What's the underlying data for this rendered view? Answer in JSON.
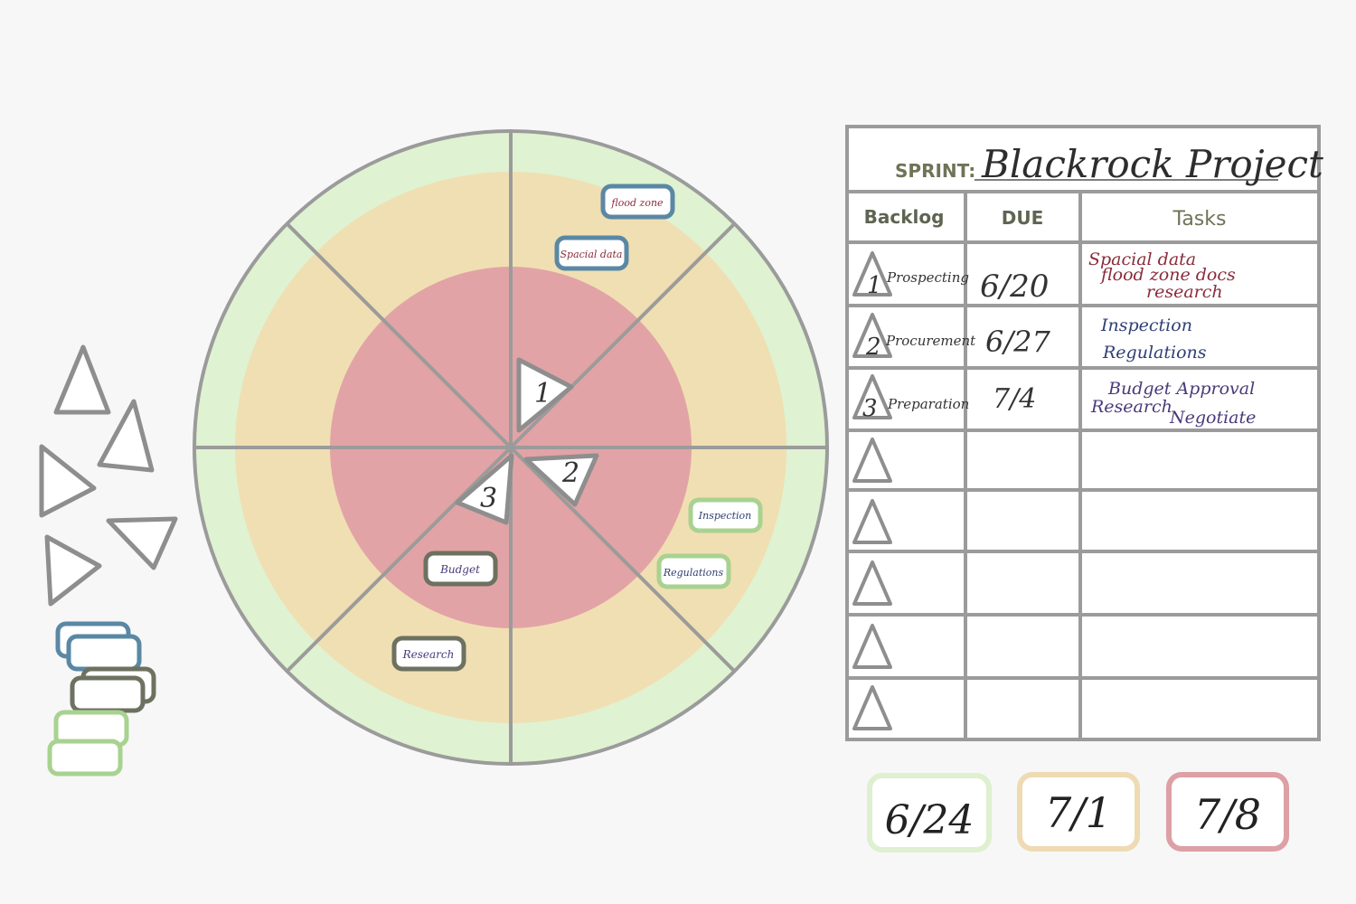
{
  "sprint": {
    "label": "SPRINT:",
    "name": "Blackrock Project"
  },
  "table": {
    "headers": [
      "Backlog",
      "DUE",
      "Tasks"
    ],
    "rows": [
      {
        "num": "1",
        "item": "Prospecting",
        "due": "6/20",
        "tasks": [
          "Spacial data",
          "flood zone docs",
          "research"
        ],
        "task_color": "#8a2b3a"
      },
      {
        "num": "2",
        "item": "Procurement",
        "due": "6/27",
        "tasks": [
          "Inspection",
          "Regulations"
        ],
        "task_color": "#2f3f74"
      },
      {
        "num": "3",
        "item": "Preparation",
        "due": "7/4",
        "tasks": [
          "Budget Approval",
          "Research",
          "Negotiate"
        ],
        "task_color": "#4a3a7a"
      },
      {
        "num": "",
        "item": "",
        "due": "",
        "tasks": []
      },
      {
        "num": "",
        "item": "",
        "due": "",
        "tasks": []
      },
      {
        "num": "",
        "item": "",
        "due": "",
        "tasks": []
      },
      {
        "num": "",
        "item": "",
        "due": "",
        "tasks": []
      },
      {
        "num": "",
        "item": "",
        "due": "",
        "tasks": []
      }
    ]
  },
  "wheel_markers": [
    {
      "num": "1"
    },
    {
      "num": "2"
    },
    {
      "num": "3"
    }
  ],
  "wheel_tags": [
    {
      "text": "flood zone",
      "group": "blue"
    },
    {
      "text": "Spacial data",
      "group": "blue"
    },
    {
      "text": "Inspection",
      "group": "green"
    },
    {
      "text": "Regulations",
      "group": "green"
    },
    {
      "text": "Budget",
      "group": "olive"
    },
    {
      "text": "Research",
      "group": "olive"
    }
  ],
  "legend": [
    {
      "label": "6/24",
      "ring": "outer"
    },
    {
      "label": "7/1",
      "ring": "middle"
    },
    {
      "label": "7/8",
      "ring": "inner"
    }
  ],
  "colors": {
    "ring_outer": "#dff2d1",
    "ring_middle": "#f0dfb2",
    "ring_inner": "#e2a3a6",
    "outline": "#9b9b9b",
    "tag_blue": "#5a88a4",
    "tag_green": "#a8d290",
    "tag_olive": "#6d7160",
    "legend_outer": "#def0cf",
    "legend_middle": "#eedbb4",
    "legend_inner": "#dca0a5",
    "sprint_label": "#6e7456",
    "header_text": "#5f6452",
    "ink": "#333333"
  }
}
